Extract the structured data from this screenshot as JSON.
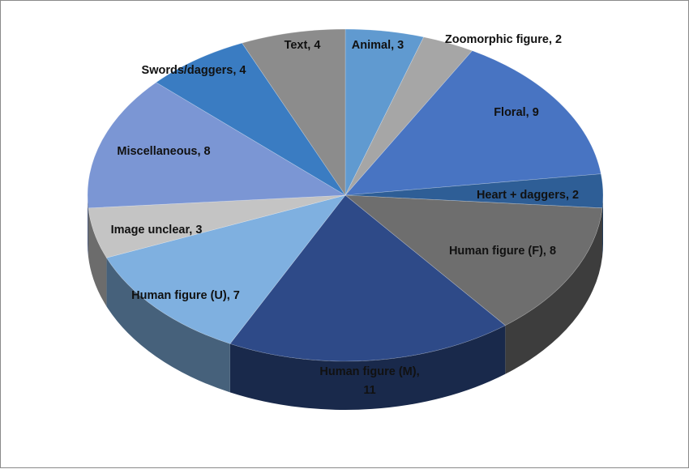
{
  "chart_data": {
    "type": "pie",
    "style": "3d",
    "title": "",
    "legend": "none",
    "series": [
      {
        "values": [
          3,
          2,
          9,
          2,
          8,
          11,
          7,
          3,
          8,
          4,
          4
        ],
        "categories": [
          "Animal",
          "Zoomorphic figure",
          "Floral",
          "Heart + daggers",
          "Human figure (F)",
          "Human figure (M)",
          "Human figure (U)",
          "Image unclear",
          "Miscellaneous",
          "Swords/daggers",
          "Text"
        ]
      }
    ],
    "slices": [
      {
        "label": "Animal",
        "value": 3,
        "data_label": "Animal, 3",
        "color": "#609ad0"
      },
      {
        "label": "Zoomorphic figure",
        "value": 2,
        "data_label": "Zoomorphic figure, 2",
        "color": "#a6a6a6"
      },
      {
        "label": "Floral",
        "value": 9,
        "data_label": "Floral, 9",
        "color": "#4874c2"
      },
      {
        "label": "Heart + daggers",
        "value": 2,
        "data_label": "Heart + daggers, 2",
        "color": "#2e5e96"
      },
      {
        "label": "Human figure (F)",
        "value": 8,
        "data_label": "Human figure (F), 8",
        "color": "#6e6e6e"
      },
      {
        "label": "Human figure (M)",
        "value": 11,
        "data_label_lines": [
          "Human figure (M),",
          "11"
        ],
        "color": "#2e4a88"
      },
      {
        "label": "Human figure (U)",
        "value": 7,
        "data_label": "Human figure (U), 7",
        "color": "#7fb0e0"
      },
      {
        "label": "Image unclear",
        "value": 3,
        "data_label": "Image unclear, 3",
        "color": "#c4c4c4"
      },
      {
        "label": "Miscellaneous",
        "value": 8,
        "data_label": "Miscellaneous, 8",
        "color": "#7b96d4"
      },
      {
        "label": "Swords/daggers",
        "value": 4,
        "data_label": "Swords/daggers, 4",
        "color": "#3a7cc2"
      },
      {
        "label": "Text",
        "value": 4,
        "data_label": "Text, 4",
        "color": "#8c8c8c"
      }
    ]
  }
}
